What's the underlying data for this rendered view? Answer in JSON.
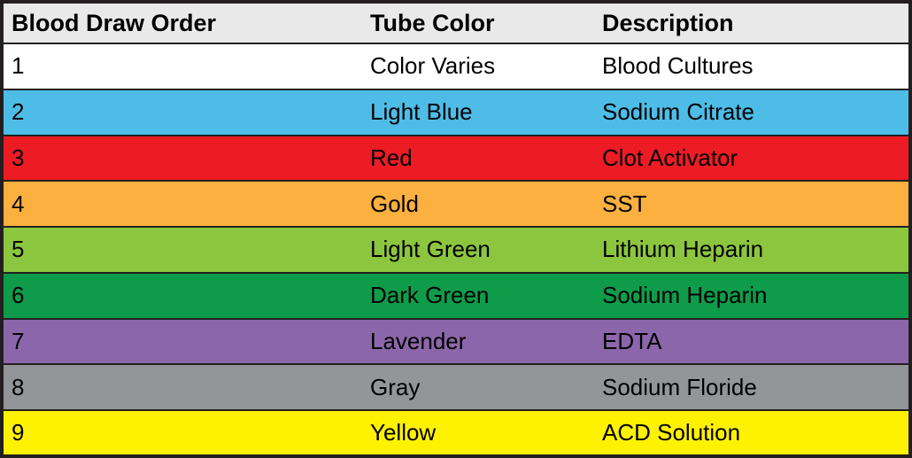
{
  "table": {
    "header_bg": "#e9e9e9",
    "border_color": "#231f20",
    "text_color": "#000000",
    "columns": [
      "Blood Draw Order",
      "Tube Color",
      "Description"
    ],
    "rows": [
      {
        "order": "1",
        "tube_color": "Color Varies",
        "description": "Blood Cultures",
        "bg": "#ffffff"
      },
      {
        "order": "2",
        "tube_color": "Light Blue",
        "description": "Sodium Citrate",
        "bg": "#4dbde8"
      },
      {
        "order": "3",
        "tube_color": "Red",
        "description": "Clot Activator",
        "bg": "#ed1c24"
      },
      {
        "order": "4",
        "tube_color": "Gold",
        "description": "SST",
        "bg": "#fbb040"
      },
      {
        "order": "5",
        "tube_color": "Light Green",
        "description": "Lithium Heparin",
        "bg": "#8cc63f"
      },
      {
        "order": "6",
        "tube_color": "Dark Green",
        "description": "Sodium Heparin",
        "bg": "#0e9c4a"
      },
      {
        "order": "7",
        "tube_color": "Lavender",
        "description": "EDTA",
        "bg": "#8c66aa"
      },
      {
        "order": "8",
        "tube_color": "Gray",
        "description": "Sodium Floride",
        "bg": "#939598"
      },
      {
        "order": "9",
        "tube_color": "Yellow",
        "description": "ACD Solution",
        "bg": "#fff200"
      }
    ]
  },
  "chart_data": {
    "type": "table",
    "title": "Blood Draw Order",
    "columns": [
      "Blood Draw Order",
      "Tube Color",
      "Description"
    ],
    "rows": [
      [
        "1",
        "Color Varies",
        "Blood Cultures"
      ],
      [
        "2",
        "Light Blue",
        "Sodium Citrate"
      ],
      [
        "3",
        "Red",
        "Clot Activator"
      ],
      [
        "4",
        "Gold",
        "SST"
      ],
      [
        "5",
        "Light Green",
        "Lithium Heparin"
      ],
      [
        "6",
        "Dark Green",
        "Sodium Heparin"
      ],
      [
        "7",
        "Lavender",
        "EDTA"
      ],
      [
        "8",
        "Gray",
        "Sodium Floride"
      ],
      [
        "9",
        "Yellow",
        "ACD Solution"
      ]
    ],
    "row_colors": [
      "#ffffff",
      "#4dbde8",
      "#ed1c24",
      "#fbb040",
      "#8cc63f",
      "#0e9c4a",
      "#8c66aa",
      "#939598",
      "#fff200"
    ],
    "layout": "full-width color-coded reference table, no column separators, black row borders"
  }
}
